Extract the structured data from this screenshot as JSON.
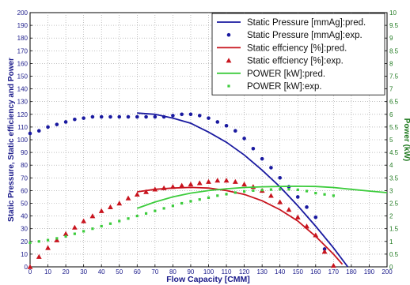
{
  "chart_data": {
    "type": "line",
    "xlabel": "Flow Capacity [CMM]",
    "ylabel_left": "Static Pressure, Static efficiency and Power",
    "ylabel_right": "Power (kW)",
    "xlim": [
      0,
      200
    ],
    "ylim_left": [
      0,
      200
    ],
    "ylim_right": [
      0,
      10
    ],
    "x_ticks": [
      0,
      10,
      20,
      30,
      40,
      50,
      60,
      70,
      80,
      90,
      100,
      110,
      120,
      130,
      140,
      150,
      160,
      170,
      180,
      190,
      200
    ],
    "y_ticks_left": [
      0,
      10,
      20,
      30,
      40,
      50,
      60,
      70,
      80,
      90,
      100,
      110,
      120,
      130,
      140,
      150,
      160,
      170,
      180,
      190,
      200
    ],
    "y_ticks_right": [
      0,
      0.5,
      1,
      1.5,
      2,
      2.5,
      3,
      3.5,
      4,
      4.5,
      5,
      5.5,
      6,
      6.5,
      7,
      7.5,
      8,
      8.5,
      9,
      9.5,
      10
    ],
    "grid": true,
    "legend_position": "top-right",
    "colors": {
      "pressure": "#1a1aa0",
      "efficiency": "#c8141e",
      "power": "#3ccc3c",
      "right_axis": "#207a20"
    },
    "series": [
      {
        "name": "Static Pressure [mmAg]:pred.",
        "kind": "line",
        "axis": "left",
        "color_key": "pressure",
        "x": [
          60,
          70,
          80,
          90,
          100,
          110,
          120,
          130,
          140,
          150,
          160,
          170,
          178
        ],
        "y": [
          121,
          120,
          117,
          113,
          106,
          98,
          88,
          76,
          63,
          48,
          32,
          15,
          0
        ]
      },
      {
        "name": "Static Pressure [mmAg]:exp.",
        "kind": "scatter",
        "marker": "circle",
        "axis": "left",
        "color_key": "pressure",
        "x": [
          0,
          5,
          10,
          15,
          20,
          25,
          30,
          35,
          40,
          45,
          50,
          55,
          60,
          65,
          70,
          75,
          80,
          85,
          90,
          95,
          100,
          105,
          110,
          115,
          120,
          125,
          130,
          135,
          140,
          145,
          150,
          155,
          160,
          165
        ],
        "y": [
          105,
          107,
          110,
          112,
          114,
          116,
          117,
          118,
          118,
          118,
          118,
          118,
          118,
          118,
          118,
          118,
          119,
          120,
          120,
          119,
          117,
          114,
          111,
          107,
          101,
          93,
          85,
          78,
          70,
          63,
          55,
          47,
          39,
          14
        ]
      },
      {
        "name": "Static effciency [%]:pred.",
        "kind": "line",
        "axis": "left",
        "color_key": "efficiency",
        "x": [
          60,
          70,
          80,
          90,
          100,
          110,
          120,
          130,
          140,
          150,
          160,
          170,
          175
        ],
        "y": [
          59,
          61,
          62,
          62.5,
          62,
          60,
          57,
          52,
          45,
          36,
          24,
          10,
          2
        ]
      },
      {
        "name": "Static effciency [%]:exp.",
        "kind": "scatter",
        "marker": "triangle",
        "axis": "left",
        "color_key": "efficiency",
        "x": [
          0,
          5,
          10,
          15,
          20,
          25,
          30,
          35,
          40,
          45,
          50,
          55,
          60,
          65,
          70,
          75,
          80,
          85,
          90,
          95,
          100,
          105,
          110,
          115,
          120,
          125,
          130,
          135,
          140,
          145,
          150,
          155,
          160,
          165,
          170
        ],
        "y": [
          0,
          8,
          15,
          21,
          26,
          31,
          36,
          40,
          44,
          47,
          50,
          54,
          57,
          59,
          61,
          62,
          63,
          64,
          65,
          66,
          67,
          68,
          68,
          67,
          65,
          63,
          60,
          56,
          51,
          45,
          39,
          32,
          25,
          12,
          1
        ]
      },
      {
        "name": "POWER [kW]:pred.",
        "kind": "line",
        "axis": "right",
        "color_key": "power",
        "x": [
          60,
          70,
          80,
          90,
          100,
          110,
          120,
          130,
          140,
          150,
          160,
          170,
          180,
          190,
          200
        ],
        "y": [
          2.3,
          2.55,
          2.75,
          2.9,
          3.0,
          3.07,
          3.12,
          3.15,
          3.16,
          3.17,
          3.16,
          3.12,
          3.05,
          2.98,
          2.92
        ]
      },
      {
        "name": "POWER [kW]:exp.",
        "kind": "scatter",
        "marker": "square",
        "axis": "right",
        "color_key": "power",
        "x": [
          0,
          5,
          10,
          15,
          20,
          25,
          30,
          35,
          40,
          45,
          50,
          55,
          60,
          65,
          70,
          75,
          80,
          85,
          90,
          95,
          100,
          105,
          110,
          115,
          120,
          125,
          130,
          135,
          140,
          145,
          150,
          155,
          160,
          165,
          170
        ],
        "y": [
          0.95,
          1.0,
          1.05,
          1.12,
          1.2,
          1.3,
          1.4,
          1.5,
          1.6,
          1.7,
          1.8,
          1.9,
          2.0,
          2.1,
          2.2,
          2.3,
          2.4,
          2.5,
          2.58,
          2.65,
          2.72,
          2.8,
          2.86,
          2.92,
          2.97,
          3.0,
          3.02,
          3.04,
          3.05,
          3.05,
          3.03,
          2.98,
          2.9,
          2.85,
          2.8
        ]
      }
    ]
  }
}
